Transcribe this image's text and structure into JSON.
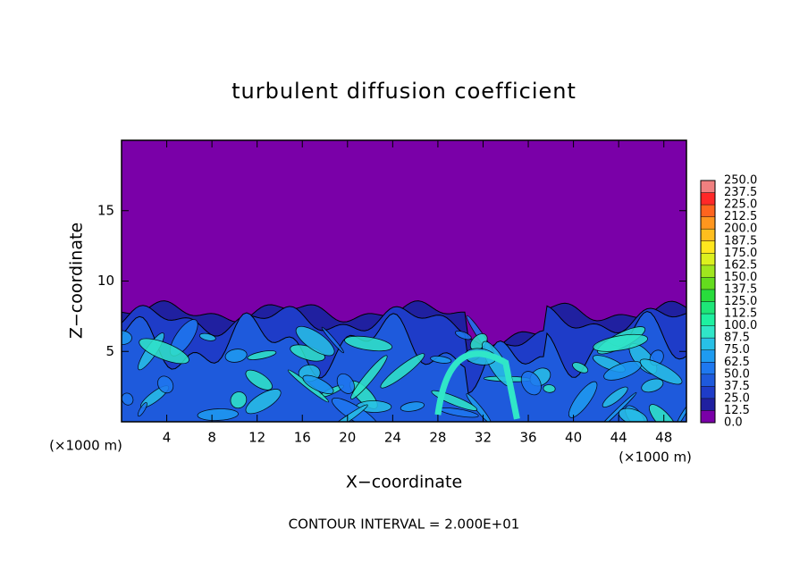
{
  "chart_data": {
    "type": "contour",
    "title": "turbulent diffusion coefficient",
    "x_label": "X−coordinate",
    "y_label": "Z−coordinate",
    "x_unit": "(×1000 m)",
    "y_unit": "(×1000 m)",
    "note": "CONTOUR INTERVAL = 2.000E+01",
    "xlim": [
      0,
      50
    ],
    "xticks": [
      4,
      8,
      12,
      16,
      20,
      24,
      28,
      32,
      36,
      40,
      44,
      48
    ],
    "ylim": [
      0,
      20
    ],
    "yticks": [
      5,
      10,
      15
    ],
    "colorbar": {
      "lim": [
        0,
        250
      ],
      "ticks": [
        {
          "value": 0,
          "label": "0.0"
        },
        12.5,
        {
          "value": 25,
          "label": "25.0"
        },
        37.5,
        {
          "value": 50,
          "label": "50.0"
        },
        62.5,
        {
          "value": 75,
          "label": "75.0"
        },
        87.5,
        {
          "value": 100,
          "label": "100.0"
        },
        112.5,
        {
          "value": 125,
          "label": "125.0"
        },
        137.5,
        {
          "value": 150,
          "label": "150.0"
        },
        162.5,
        {
          "value": 175,
          "label": "175.0"
        },
        187.5,
        {
          "value": 200,
          "label": "200.0"
        },
        212.5,
        {
          "value": 225,
          "label": "225.0"
        },
        237.5,
        {
          "value": 250,
          "label": "250.0"
        }
      ],
      "colors": [
        "#7a00a8",
        "#2020a0",
        "#1e3cc8",
        "#1e5adc",
        "#1e78f0",
        "#1e9bf0",
        "#28c0e6",
        "#30e6c8",
        "#1ef0a0",
        "#1ee678",
        "#28dc3c",
        "#64dc1e",
        "#a0e61e",
        "#dcf01e",
        "#ffe61e",
        "#ffbe1e",
        "#ff961e",
        "#ff641e",
        "#ff2828",
        "#f08080"
      ]
    }
  }
}
